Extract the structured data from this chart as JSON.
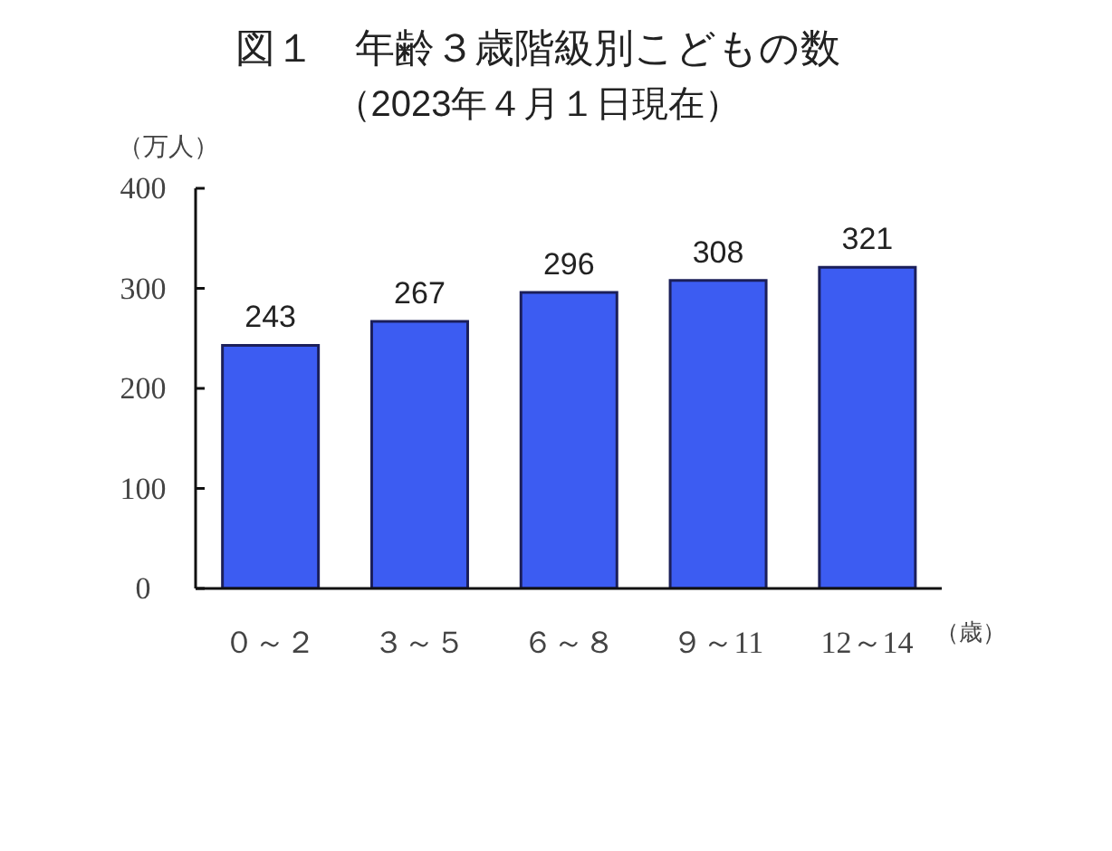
{
  "chart_data": {
    "type": "bar",
    "title": "図１　年齢３歳階級別こどもの数",
    "subtitle": "（2023年４月１日現在）",
    "xlabel": "（歳）",
    "ylabel": "（万人）",
    "categories": [
      "０～２",
      "３～５",
      "６～８",
      "９～11",
      "12～14"
    ],
    "values": [
      243,
      267,
      296,
      308,
      321
    ],
    "color": "#3c5cf2",
    "ylim": [
      0,
      400
    ],
    "yticks": [
      0,
      100,
      200,
      300,
      400
    ],
    "grid": false,
    "data_labels": true
  }
}
